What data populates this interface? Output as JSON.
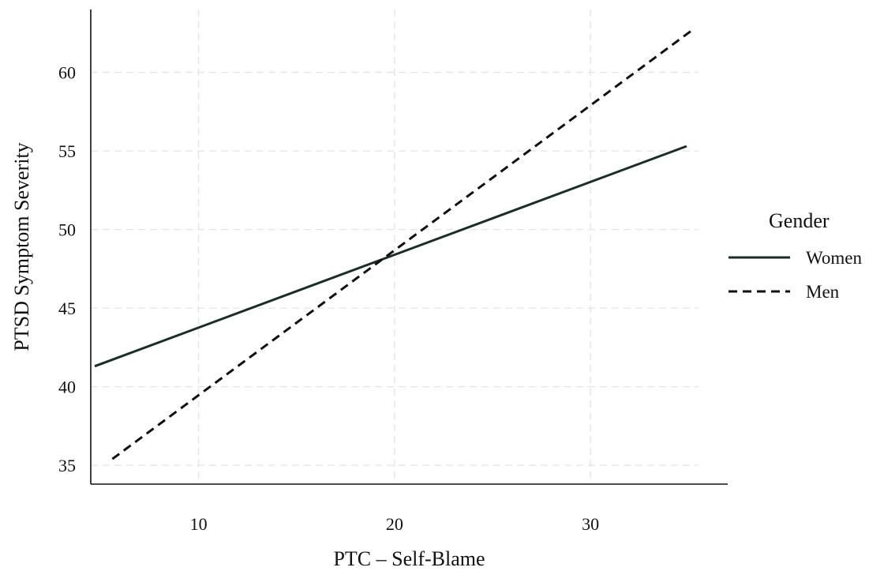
{
  "chart_data": {
    "type": "line",
    "xlabel": "PTC – Self-Blame",
    "ylabel": "PTSD Symptom Severity",
    "xlim": [
      4.5,
      37
    ],
    "ylim": [
      33.8,
      64
    ],
    "xticks": [
      10,
      20,
      30
    ],
    "yticks": [
      35,
      40,
      45,
      50,
      55,
      60
    ],
    "grid": true,
    "legend": {
      "title": "Gender",
      "position": "right"
    },
    "series": [
      {
        "name": "Women",
        "line_style": "solid",
        "color": "#1a2e26",
        "x": [
          4.7,
          34.9
        ],
        "y": [
          41.3,
          55.3
        ]
      },
      {
        "name": "Men",
        "line_style": "dashed",
        "color": "#111111",
        "x": [
          5.6,
          35.2
        ],
        "y": [
          35.4,
          62.7
        ]
      }
    ]
  }
}
